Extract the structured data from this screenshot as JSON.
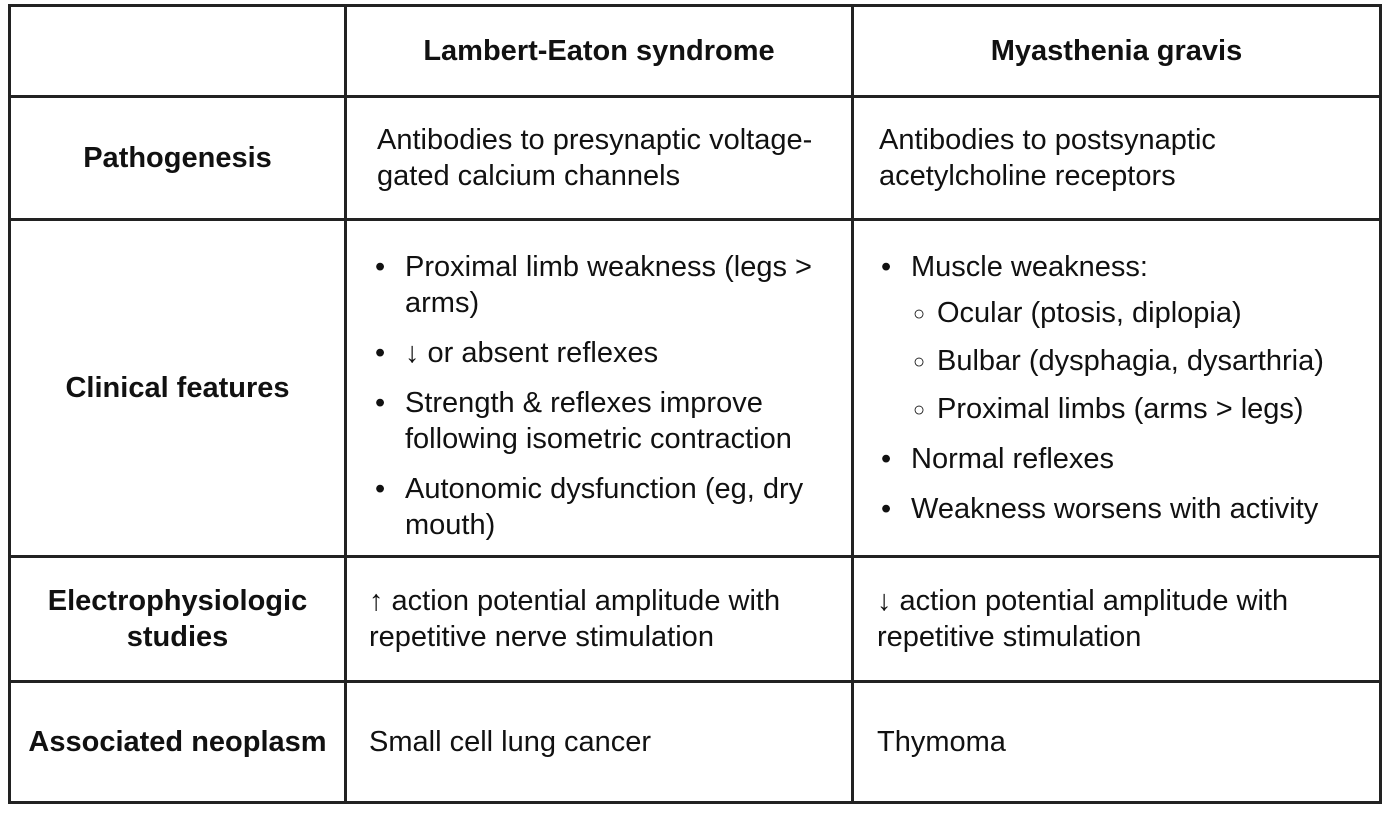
{
  "header": {
    "corner": "",
    "col1": "Lambert-Eaton syndrome",
    "col2": "Myasthenia gravis"
  },
  "rows": {
    "pathogenesis": {
      "label": "Pathogenesis",
      "col1": "Antibodies to presynaptic voltage-gated calcium channels",
      "col2": "Antibodies to postsynaptic acetylcholine receptors"
    },
    "clinical": {
      "label": "Clinical features",
      "col1": [
        "Proximal limb weakness (legs > arms)",
        "↓ or absent reflexes",
        "Strength & reflexes improve following isometric contraction",
        "Autonomic dysfunction (eg, dry mouth)"
      ],
      "col2_intro": "Muscle weakness:",
      "col2_sub": [
        "Ocular (ptosis, diplopia)",
        "Bulbar (dysphagia, dysarthria)",
        "Proximal limbs (arms > legs)"
      ],
      "col2_rest": [
        "Normal reflexes",
        "Weakness worsens with activity"
      ]
    },
    "electro": {
      "label": "Electrophysiologic studies",
      "col1": "↑ action potential amplitude with repetitive nerve stimulation",
      "col2": "↓ action potential amplitude with repetitive stimulation"
    },
    "neoplasm": {
      "label": "Associated neoplasm",
      "col1": "Small cell lung cancer",
      "col2": "Thymoma"
    }
  }
}
